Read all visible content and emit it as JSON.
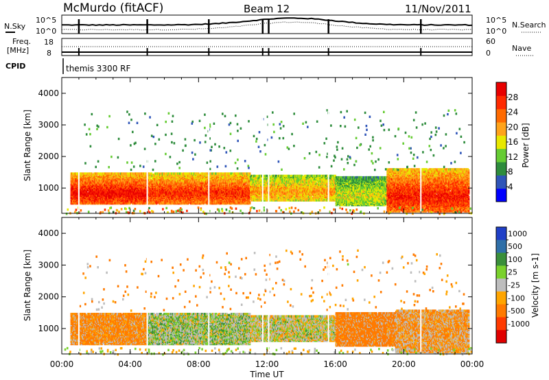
{
  "header": {
    "station": "McMurdo (fitACF)",
    "beam": "Beam 12",
    "date": "11/Nov/2011"
  },
  "top_panels": {
    "nsky_label": "N.Sky",
    "nsearch_label": "N.Search",
    "noise_ticks": [
      "10^5",
      "10^0"
    ],
    "freq_label_1": "Freq.",
    "freq_label_2": "[MHz]",
    "freq_ticks": [
      "18",
      "8"
    ],
    "nave_label": "Nave",
    "nave_ticks": [
      "60",
      "0"
    ],
    "cpid_label": "CPID",
    "cpid_text": "themis 3300 RF"
  },
  "colors": {
    "power_scale": [
      "#0000ff",
      "#2f55b8",
      "#2e8c3c",
      "#66cc33",
      "#e8e800",
      "#ffa31a",
      "#ff6a00",
      "#ff2a00",
      "#e80000"
    ],
    "velocity_scale": [
      "#1f3fc7",
      "#2f6fa8",
      "#3a8f3a",
      "#7ad12c",
      "#bdbdbd",
      "#ffa500",
      "#ff7a00",
      "#ff3a00",
      "#e00000"
    ]
  },
  "chart_data": [
    {
      "type": "heatmap",
      "title": "",
      "xlabel": "Time UT",
      "ylabel": "Slant Range [km]",
      "xlim": [
        "00:00",
        "24:00"
      ],
      "ylim": [
        200,
        4500
      ],
      "x_ticks": [
        "00:00",
        "04:00",
        "08:00",
        "12:00",
        "16:00",
        "20:00",
        "00:00"
      ],
      "y_ticks": [
        1000,
        2000,
        3000,
        4000
      ],
      "colorbar": {
        "label": "Power [dB]",
        "ticks": [
          4,
          8,
          12,
          16,
          20,
          24,
          28
        ],
        "range": [
          0,
          32
        ]
      },
      "bands": [
        {
          "t_start": 0.5,
          "t_end": 5,
          "r_low": 550,
          "r_high": 1500,
          "value": 26
        },
        {
          "t_start": 5,
          "t_end": 11,
          "r_low": 550,
          "r_high": 1500,
          "value": 24
        },
        {
          "t_start": 11,
          "t_end": 16,
          "r_low": 650,
          "r_high": 1450,
          "value": 18
        },
        {
          "t_start": 16,
          "t_end": 19,
          "r_low": 500,
          "r_high": 1400,
          "value": 14
        },
        {
          "t_start": 19,
          "t_end": 23.8,
          "r_low": 300,
          "r_high": 1650,
          "value": 25
        }
      ]
    },
    {
      "type": "heatmap",
      "title": "",
      "xlabel": "Time UT",
      "ylabel": "Slant Range [km]",
      "xlim": [
        "00:00",
        "24:00"
      ],
      "ylim": [
        200,
        4500
      ],
      "x_ticks": [
        "00:00",
        "04:00",
        "08:00",
        "12:00",
        "16:00",
        "20:00",
        "00:00"
      ],
      "y_ticks": [
        1000,
        2000,
        3000,
        4000
      ],
      "colorbar": {
        "label": "Velocity [m s-1]",
        "ticks": [
          1000,
          500,
          100,
          25,
          -25,
          -100,
          -500,
          -1000
        ]
      },
      "bands": [
        {
          "t_start": 0.5,
          "t_end": 5,
          "r_low": 550,
          "r_high": 1500,
          "value": -150
        },
        {
          "t_start": 5,
          "t_end": 11,
          "r_low": 550,
          "r_high": 1500,
          "value": 50
        },
        {
          "t_start": 11,
          "t_end": 16,
          "r_low": 650,
          "r_high": 1450,
          "value": 0
        },
        {
          "t_start": 16,
          "t_end": 19.5,
          "r_low": 500,
          "r_high": 1550,
          "value": -200
        },
        {
          "t_start": 19.5,
          "t_end": 23.8,
          "r_low": 300,
          "r_high": 1600,
          "value": -100
        }
      ]
    }
  ]
}
